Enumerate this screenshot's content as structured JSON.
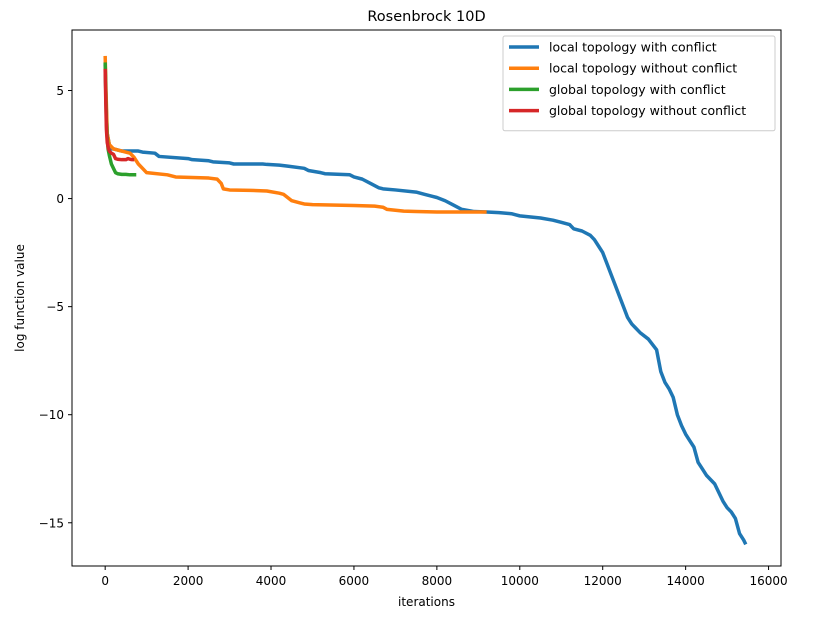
{
  "chart_data": {
    "type": "line",
    "title": "Rosenbrock 10D",
    "xlabel": "iterations",
    "ylabel": "log function value",
    "xlim": [
      -800,
      16300
    ],
    "ylim": [
      -17,
      7.8
    ],
    "xticks": [
      0,
      2000,
      4000,
      6000,
      8000,
      10000,
      12000,
      14000,
      16000
    ],
    "yticks": [
      5,
      0,
      -5,
      -10,
      -15
    ],
    "ytick_labels": [
      "5",
      "0",
      "−5",
      "−10",
      "−15"
    ],
    "grid": false,
    "legend": "top-right",
    "series": [
      {
        "name": "local topology with conflict",
        "color": "#1f77b4",
        "x": [
          0,
          20,
          50,
          100,
          150,
          200,
          400,
          800,
          900,
          1200,
          1300,
          2000,
          2100,
          2500,
          2600,
          3000,
          3100,
          3800,
          3900,
          4200,
          4400,
          4800,
          4900,
          5200,
          5300,
          5900,
          6000,
          6200,
          6400,
          6600,
          6700,
          7000,
          7500,
          7700,
          7900,
          8000,
          8200,
          8400,
          8600,
          8900,
          9200,
          9500,
          9800,
          9900,
          10000,
          10500,
          10800,
          11000,
          11200,
          11300,
          11500,
          11700,
          11800,
          11900,
          12000,
          12100,
          12200,
          12300,
          12400,
          12500,
          12600,
          12700,
          12800,
          12900,
          13100,
          13300,
          13400,
          13500,
          13600,
          13700,
          13800,
          13900,
          14000,
          14100,
          14200,
          14300,
          14400,
          14500,
          14700,
          14800,
          14900,
          15000,
          15100,
          15200,
          15300,
          15400,
          15450
        ],
        "values": [
          6.2,
          4.5,
          3.0,
          2.5,
          2.3,
          2.3,
          2.2,
          2.2,
          2.15,
          2.1,
          1.95,
          1.85,
          1.8,
          1.75,
          1.7,
          1.65,
          1.6,
          1.6,
          1.58,
          1.55,
          1.5,
          1.4,
          1.3,
          1.2,
          1.15,
          1.1,
          1.0,
          0.9,
          0.7,
          0.5,
          0.45,
          0.4,
          0.3,
          0.2,
          0.1,
          0.05,
          -0.1,
          -0.3,
          -0.5,
          -0.6,
          -0.62,
          -0.65,
          -0.7,
          -0.75,
          -0.8,
          -0.9,
          -1.0,
          -1.1,
          -1.2,
          -1.4,
          -1.5,
          -1.7,
          -1.9,
          -2.2,
          -2.5,
          -3.0,
          -3.5,
          -4.0,
          -4.5,
          -5.0,
          -5.5,
          -5.8,
          -6.0,
          -6.2,
          -6.5,
          -7.0,
          -8.0,
          -8.5,
          -8.8,
          -9.2,
          -10.0,
          -10.5,
          -10.9,
          -11.2,
          -11.5,
          -12.2,
          -12.5,
          -12.8,
          -13.2,
          -13.6,
          -14.0,
          -14.3,
          -14.5,
          -14.8,
          -15.5,
          -15.8,
          -16.0
        ]
      },
      {
        "name": "local topology without conflict",
        "color": "#ff7f0e",
        "x": [
          0,
          20,
          50,
          100,
          200,
          400,
          600,
          700,
          800,
          900,
          1000,
          1500,
          1700,
          2500,
          2700,
          2800,
          2850,
          3000,
          3500,
          3900,
          4200,
          4300,
          4400,
          4500,
          4700,
          4800,
          5000,
          6000,
          6500,
          6700,
          6800,
          7200,
          7500,
          8000,
          8500,
          9000,
          9200
        ],
        "values": [
          6.6,
          5.0,
          3.0,
          2.5,
          2.3,
          2.2,
          2.1,
          1.9,
          1.6,
          1.4,
          1.2,
          1.1,
          1.0,
          0.95,
          0.9,
          0.7,
          0.45,
          0.4,
          0.38,
          0.35,
          0.25,
          0.2,
          0.05,
          -0.1,
          -0.2,
          -0.25,
          -0.28,
          -0.32,
          -0.35,
          -0.4,
          -0.5,
          -0.58,
          -0.6,
          -0.62,
          -0.62,
          -0.62,
          -0.62
        ]
      },
      {
        "name": "global topology with conflict",
        "color": "#2ca02c",
        "x": [
          0,
          10,
          20,
          30,
          50,
          70,
          100,
          150,
          200,
          250,
          300,
          400,
          500,
          600,
          700,
          750
        ],
        "values": [
          6.3,
          5.5,
          4.5,
          3.5,
          2.8,
          2.3,
          2.0,
          1.6,
          1.4,
          1.2,
          1.15,
          1.12,
          1.12,
          1.1,
          1.1,
          1.1
        ]
      },
      {
        "name": "global topology without conflict",
        "color": "#d62728",
        "x": [
          0,
          10,
          20,
          30,
          50,
          80,
          100,
          150,
          200,
          250,
          300,
          400,
          500,
          550,
          600,
          650,
          700
        ],
        "values": [
          6.0,
          5.0,
          4.0,
          3.2,
          2.6,
          2.3,
          2.2,
          2.1,
          2.05,
          1.85,
          1.82,
          1.8,
          1.8,
          1.85,
          1.82,
          1.8,
          1.8
        ]
      }
    ]
  }
}
